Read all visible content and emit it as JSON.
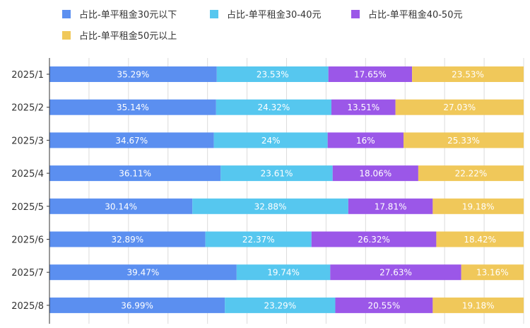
{
  "chart_data": {
    "type": "bar",
    "orientation": "horizontal",
    "stacked": true,
    "title": "",
    "xlabel": "",
    "ylabel": "",
    "xlim": [
      0,
      100
    ],
    "grid": true,
    "legend_position": "top-left",
    "categories": [
      "2025/1",
      "2025/2",
      "2025/3",
      "2025/4",
      "2025/5",
      "2025/6",
      "2025/7",
      "2025/8"
    ],
    "series": [
      {
        "name": "占比-单平租金30元以下",
        "color": "#5b8ff0",
        "values": [
          35.29,
          35.14,
          34.67,
          36.11,
          30.14,
          32.89,
          39.47,
          36.99
        ],
        "labels": [
          "35.29%",
          "35.14%",
          "34.67%",
          "36.11%",
          "30.14%",
          "32.89%",
          "39.47%",
          "36.99%"
        ]
      },
      {
        "name": "占比-单平租金30-40元",
        "color": "#56c7ef",
        "values": [
          23.53,
          24.32,
          24,
          23.61,
          32.88,
          22.37,
          19.74,
          23.29
        ],
        "labels": [
          "23.53%",
          "24.32%",
          "24%",
          "23.61%",
          "32.88%",
          "22.37%",
          "19.74%",
          "23.29%"
        ]
      },
      {
        "name": "占比-单平租金40-50元",
        "color": "#9b57e8",
        "values": [
          17.65,
          13.51,
          16,
          18.06,
          17.81,
          26.32,
          27.63,
          20.55
        ],
        "labels": [
          "17.65%",
          "13.51%",
          "16%",
          "18.06%",
          "17.81%",
          "26.32%",
          "27.63%",
          "20.55%"
        ]
      },
      {
        "name": "占比-单平租金50元以上",
        "color": "#f0c85a",
        "values": [
          23.53,
          27.03,
          25.33,
          22.22,
          19.18,
          18.42,
          13.16,
          19.18
        ],
        "labels": [
          "23.53%",
          "27.03%",
          "25.33%",
          "22.22%",
          "19.18%",
          "18.42%",
          "13.16%",
          "19.18%"
        ]
      }
    ]
  }
}
